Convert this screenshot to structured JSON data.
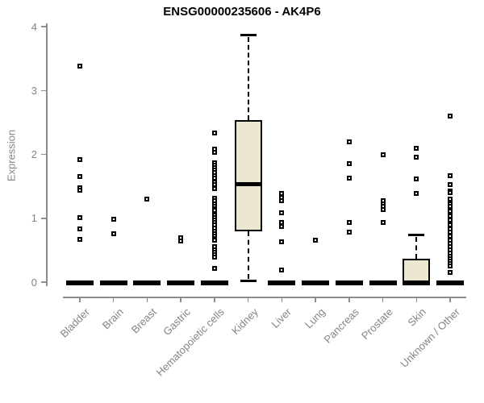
{
  "chart_data": {
    "type": "boxplot",
    "title": "ENSG00000235606 - AK4P6",
    "xlabel": "",
    "ylabel": "Expression",
    "ylim": [
      0,
      4
    ],
    "yticks": [
      0,
      1,
      2,
      3,
      4
    ],
    "grid": false,
    "legend": "none",
    "categories": [
      "Bladder",
      "Brain",
      "Breast",
      "Gastric",
      "Hematopoietic cells",
      "Kidney",
      "Liver",
      "Lung",
      "Pancreas",
      "Prostate",
      "Skin",
      "Unknown / Other"
    ],
    "groups": [
      {
        "name": "Bladder",
        "q1": 0,
        "median": 0,
        "q3": 0,
        "whisker_low": 0,
        "whisker_high": 0,
        "outliers": [
          3.38,
          1.92,
          1.65,
          1.48,
          1.44,
          1.01,
          0.83,
          0.67
        ]
      },
      {
        "name": "Brain",
        "q1": 0,
        "median": 0,
        "q3": 0,
        "whisker_low": 0,
        "whisker_high": 0,
        "outliers": [
          0.99,
          0.76
        ]
      },
      {
        "name": "Breast",
        "q1": 0,
        "median": 0,
        "q3": 0,
        "whisker_low": 0,
        "whisker_high": 0,
        "outliers": [
          1.3
        ]
      },
      {
        "name": "Gastric",
        "q1": 0,
        "median": 0,
        "q3": 0,
        "whisker_low": 0,
        "whisker_high": 0,
        "outliers": [
          0.7,
          0.64
        ]
      },
      {
        "name": "Hematopoietic cells",
        "q1": 0,
        "median": 0,
        "q3": 0,
        "whisker_low": 0,
        "whisker_high": 0,
        "outliers": [
          2.33,
          2.08,
          2.03,
          1.87,
          1.83,
          1.79,
          1.75,
          1.71,
          1.67,
          1.63,
          1.57,
          1.53,
          1.46,
          1.31,
          1.27,
          1.23,
          1.19,
          1.15,
          1.12,
          1.05,
          1.01,
          0.97,
          0.93,
          0.89,
          0.84,
          0.8,
          0.76,
          0.72,
          0.68,
          0.65,
          0.55,
          0.51,
          0.47,
          0.43,
          0.39,
          0.21
        ]
      },
      {
        "name": "Kidney",
        "q1": 0.8,
        "median": 1.55,
        "q3": 2.53,
        "whisker_low": 0.02,
        "whisker_high": 3.87,
        "outliers": []
      },
      {
        "name": "Liver",
        "q1": 0,
        "median": 0,
        "q3": 0,
        "whisker_low": 0,
        "whisker_high": 0,
        "outliers": [
          1.39,
          1.33,
          1.27,
          1.08,
          0.93,
          0.87,
          0.63,
          0.19
        ]
      },
      {
        "name": "Lung",
        "q1": 0,
        "median": 0,
        "q3": 0,
        "whisker_low": 0,
        "whisker_high": 0,
        "outliers": [
          0.65
        ]
      },
      {
        "name": "Pancreas",
        "q1": 0,
        "median": 0,
        "q3": 0,
        "whisker_low": 0,
        "whisker_high": 0,
        "outliers": [
          2.19,
          1.86,
          1.63,
          0.93,
          0.78
        ]
      },
      {
        "name": "Prostate",
        "q1": 0,
        "median": 0,
        "q3": 0,
        "whisker_low": 0,
        "whisker_high": 0,
        "outliers": [
          2.0,
          1.28,
          1.23,
          1.18,
          1.13,
          0.93
        ]
      },
      {
        "name": "Skin",
        "q1": 0,
        "median": 0,
        "q3": 0.37,
        "whisker_low": 0,
        "whisker_high": 0.75,
        "outliers": [
          2.1,
          1.95,
          1.62,
          1.39
        ]
      },
      {
        "name": "Unknown / Other",
        "q1": 0,
        "median": 0,
        "q3": 0,
        "whisker_low": 0,
        "whisker_high": 0,
        "outliers": [
          2.6,
          1.67,
          1.53,
          1.43,
          1.4,
          1.3,
          1.23,
          1.18,
          1.11,
          1.03,
          0.97,
          0.9,
          0.83,
          0.78,
          0.72,
          0.66,
          0.6,
          0.55,
          0.5,
          0.45,
          0.41,
          0.37,
          0.33,
          0.29,
          0.25,
          0.15
        ]
      }
    ],
    "colors": {
      "box_fill": "#ECE7D0",
      "box_border": "#000000",
      "median": "#000000",
      "outlier": "#000000",
      "axis": "#8C8C8C",
      "tick_text": "#848484",
      "title_text": "#000000",
      "background": "#FFFFFF"
    }
  }
}
